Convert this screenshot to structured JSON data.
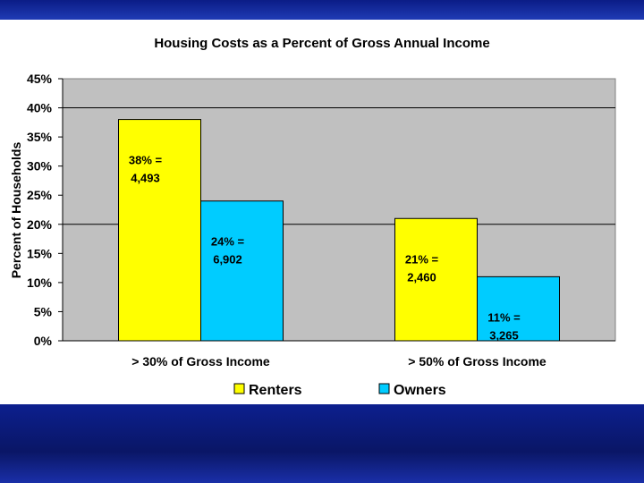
{
  "chart_data": {
    "type": "bar",
    "title": "Housing Costs as a Percent of Gross Annual Income",
    "xlabel": "",
    "ylabel": "Percent of Households",
    "categories": [
      "> 30% of Gross Income",
      "> 50% of Gross Income"
    ],
    "series": [
      {
        "name": "Renters",
        "values": [
          38,
          21
        ],
        "labels": [
          [
            "38% =",
            "4,493"
          ],
          [
            "21% =",
            "2,460"
          ]
        ]
      },
      {
        "name": "Owners",
        "values": [
          24,
          11
        ],
        "labels": [
          [
            "24% =",
            "6,902"
          ],
          [
            "11% =",
            "3,265"
          ]
        ]
      }
    ],
    "yticks": [
      "0%",
      "5%",
      "10%",
      "15%",
      "20%",
      "25%",
      "30%",
      "35%",
      "40%",
      "45%"
    ],
    "ylim": [
      0,
      45
    ],
    "grid": true,
    "legend": "bottom",
    "colors": {
      "Renters": "#ffff00",
      "Owners": "#00ccff",
      "plot_bg": "#c0c0c0"
    }
  }
}
